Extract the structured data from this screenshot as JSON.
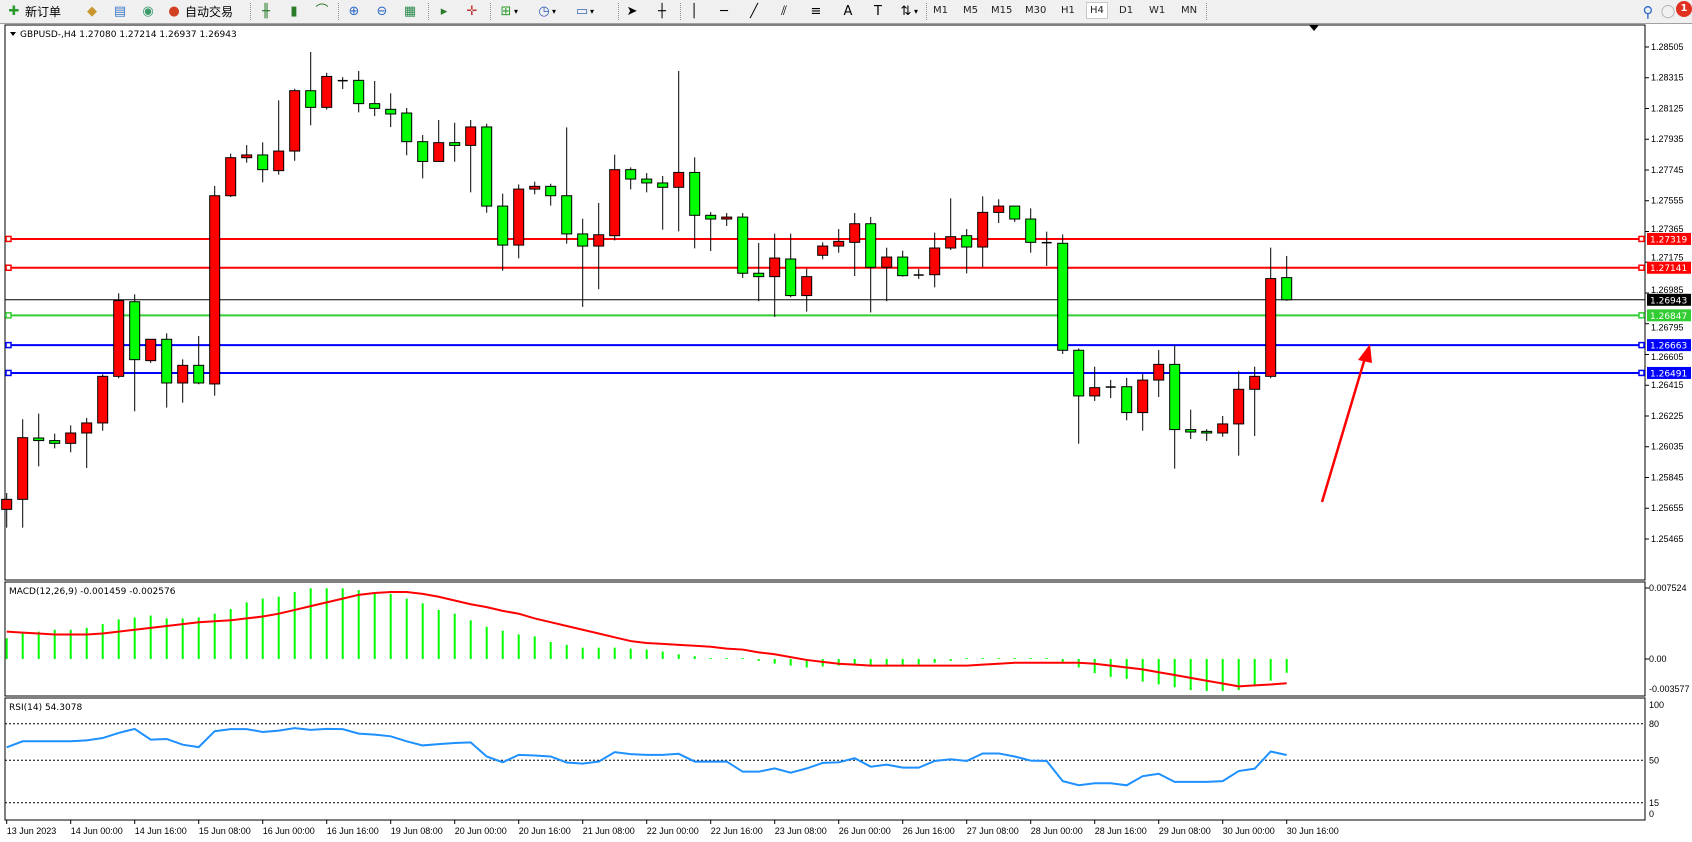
{
  "toolbar": {
    "new_order_label": "新订单",
    "auto_trade_label": "自动交易",
    "icons": [
      "new-order-icon",
      "market-watch-icon",
      "data-window-icon",
      "signals-icon",
      "auto-trading-icon",
      "bar-chart-icon",
      "candlestick-icon",
      "line-chart-icon",
      "zoom-in-icon",
      "zoom-out-icon",
      "tile-windows-icon",
      "chart-shift-icon",
      "autoscroll-icon",
      "indicators-icon",
      "periods-icon",
      "templates-icon",
      "cursor-icon",
      "crosshair-icon",
      "vertical-line-icon",
      "horizontal-line-icon",
      "trendline-icon",
      "equidistant-channel-icon",
      "fibonacci-icon",
      "text-icon",
      "text-label-icon",
      "arrows-icon",
      "search-icon",
      "notifications-icon"
    ],
    "timeframes": [
      "M1",
      "M5",
      "M15",
      "M30",
      "H1",
      "H4",
      "D1",
      "W1",
      "MN"
    ],
    "active_timeframe": "H4",
    "notification_count": "1"
  },
  "chart_header": "GBPUSD-,H4  1.27080 1.27214 1.26937 1.26943",
  "chart_data": [
    {
      "type": "candlestick",
      "symbol": "GBPUSD-",
      "timeframe": "H4",
      "ylim": [
        1.25465,
        1.28505
      ],
      "y_ticks": [
        "1.28505",
        "1.28315",
        "1.28125",
        "1.27935",
        "1.27745",
        "1.27555",
        "1.27365",
        "1.27175",
        "1.26985",
        "1.26795",
        "1.26605",
        "1.26415",
        "1.26225",
        "1.26035",
        "1.25845",
        "1.25655",
        "1.25465"
      ],
      "x_tick_labels": [
        "13 Jun 2023",
        "14 Jun 00:00",
        "14 Jun 16:00",
        "15 Jun 08:00",
        "16 Jun 00:00",
        "16 Jun 16:00",
        "19 Jun 08:00",
        "20 Jun 00:00",
        "20 Jun 16:00",
        "21 Jun 08:00",
        "22 Jun 00:00",
        "22 Jun 16:00",
        "23 Jun 08:00",
        "26 Jun 00:00",
        "26 Jun 16:00",
        "27 Jun 08:00",
        "28 Jun 00:00",
        "28 Jun 16:00",
        "29 Jun 08:00",
        "30 Jun 00:00",
        "30 Jun 16:00"
      ],
      "ohlc_fields": [
        "open",
        "high",
        "low",
        "close"
      ],
      "up_color": "#ff0000",
      "down_color": "#00ff00",
      "candles": [
        [
          1.25648,
          1.25749,
          1.25535,
          1.2571
        ],
        [
          1.2571,
          1.26205,
          1.25535,
          1.26091
        ],
        [
          1.26089,
          1.2624,
          1.25914,
          1.26073
        ],
        [
          1.26073,
          1.26116,
          1.26025,
          1.26056
        ],
        [
          1.26056,
          1.26167,
          1.26001,
          1.2612
        ],
        [
          1.2612,
          1.26213,
          1.25904,
          1.26182
        ],
        [
          1.26182,
          1.26483,
          1.26134,
          1.2647
        ],
        [
          1.2647,
          1.26983,
          1.26458,
          1.26938
        ],
        [
          1.26931,
          1.26977,
          1.26254,
          1.26573
        ],
        [
          1.26567,
          1.26699,
          1.26553,
          1.26699
        ],
        [
          1.26699,
          1.26736,
          1.26277,
          1.26429
        ],
        [
          1.26429,
          1.26575,
          1.26307,
          1.26538
        ],
        [
          1.26538,
          1.26719,
          1.26421,
          1.26429
        ],
        [
          1.26423,
          1.27646,
          1.26351,
          1.27586
        ],
        [
          1.27586,
          1.27846,
          1.27578,
          1.27821
        ],
        [
          1.27821,
          1.27899,
          1.2779,
          1.27838
        ],
        [
          1.27838,
          1.27916,
          1.27669,
          1.27747
        ],
        [
          1.27741,
          1.28175,
          1.27716,
          1.27862
        ],
        [
          1.27862,
          1.28247,
          1.27802,
          1.28235
        ],
        [
          1.28235,
          1.28474,
          1.28021,
          1.28132
        ],
        [
          1.28132,
          1.28346,
          1.28118,
          1.28323
        ],
        [
          1.28297,
          1.28319,
          1.28245,
          1.28295
        ],
        [
          1.28299,
          1.28357,
          1.28101,
          1.28155
        ],
        [
          1.28155,
          1.28295,
          1.28078,
          1.28126
        ],
        [
          1.2812,
          1.28219,
          1.2801,
          1.28091
        ],
        [
          1.28097,
          1.28128,
          1.27836,
          1.2792
        ],
        [
          1.2792,
          1.27961,
          1.27693,
          1.27798
        ],
        [
          1.27798,
          1.28054,
          1.27798,
          1.27914
        ],
        [
          1.27914,
          1.28037,
          1.27796,
          1.27897
        ],
        [
          1.27897,
          1.28054,
          1.27607,
          1.28011
        ],
        [
          1.28011,
          1.28031,
          1.27481,
          1.27522
        ],
        [
          1.27522,
          1.27599,
          1.27123,
          1.27281
        ],
        [
          1.27281,
          1.27656,
          1.27199,
          1.27627
        ],
        [
          1.27627,
          1.27673,
          1.27595,
          1.27644
        ],
        [
          1.27644,
          1.2766,
          1.27525,
          1.27586
        ],
        [
          1.27586,
          1.28008,
          1.2729,
          1.2735
        ],
        [
          1.2735,
          1.27444,
          1.26899,
          1.27275
        ],
        [
          1.27275,
          1.27541,
          1.27008,
          1.27345
        ],
        [
          1.27339,
          1.2784,
          1.2731,
          1.27747
        ],
        [
          1.27747,
          1.27761,
          1.27625,
          1.27689
        ],
        [
          1.27689,
          1.27726,
          1.27607,
          1.27665
        ],
        [
          1.27665,
          1.27708,
          1.27376,
          1.27638
        ],
        [
          1.27638,
          1.28357,
          1.27366,
          1.2773
        ],
        [
          1.2773,
          1.27823,
          1.27261,
          1.27465
        ],
        [
          1.27465,
          1.27485,
          1.27244,
          1.27442
        ],
        [
          1.27442,
          1.27479,
          1.27399,
          1.27454
        ],
        [
          1.27454,
          1.27479,
          1.27078,
          1.27107
        ],
        [
          1.27107,
          1.27294,
          1.26934,
          1.27086
        ],
        [
          1.27086,
          1.27352,
          1.26837,
          1.27201
        ],
        [
          1.27195,
          1.27352,
          1.26958,
          1.26969
        ],
        [
          1.26969,
          1.27135,
          1.2687,
          1.27086
        ],
        [
          1.27218,
          1.27298,
          1.27193,
          1.27275
        ],
        [
          1.27275,
          1.2738,
          1.27234,
          1.27304
        ],
        [
          1.27298,
          1.27479,
          1.2709,
          1.27413
        ],
        [
          1.27413,
          1.27455,
          1.26865,
          1.27144
        ],
        [
          1.27144,
          1.27265,
          1.26934,
          1.27207
        ],
        [
          1.27207,
          1.27247,
          1.27086,
          1.27092
        ],
        [
          1.27096,
          1.27133,
          1.27072,
          1.27094
        ],
        [
          1.27098,
          1.27358,
          1.2702,
          1.27263
        ],
        [
          1.27263,
          1.2757,
          1.27251,
          1.27333
        ],
        [
          1.27339,
          1.2738,
          1.27106,
          1.27269
        ],
        [
          1.27269,
          1.27582,
          1.27144,
          1.27483
        ],
        [
          1.27483,
          1.27564,
          1.27417,
          1.27522
        ],
        [
          1.27522,
          1.27522,
          1.27424,
          1.27442
        ],
        [
          1.27442,
          1.27508,
          1.27234,
          1.27298
        ],
        [
          1.27296,
          1.27364,
          1.27152,
          1.27294
        ],
        [
          1.27292,
          1.27347,
          1.26608,
          1.26631
        ],
        [
          1.26631,
          1.26643,
          1.26054,
          1.26349
        ],
        [
          1.26349,
          1.2653,
          1.26318,
          1.264
        ],
        [
          1.26404,
          1.26448,
          1.26336,
          1.26404
        ],
        [
          1.26406,
          1.2646,
          1.26198,
          1.26246
        ],
        [
          1.26246,
          1.26487,
          1.26134,
          1.26447
        ],
        [
          1.26447,
          1.26633,
          1.26342,
          1.26544
        ],
        [
          1.26544,
          1.26662,
          1.259,
          1.26141
        ],
        [
          1.26141,
          1.26264,
          1.26083,
          1.26126
        ],
        [
          1.2613,
          1.26143,
          1.26071,
          1.2612
        ],
        [
          1.2612,
          1.26225,
          1.26097,
          1.26176
        ],
        [
          1.26176,
          1.26501,
          1.2598,
          1.2639
        ],
        [
          1.2639,
          1.2653,
          1.26101,
          1.2647
        ],
        [
          1.2647,
          1.27265,
          1.26458,
          1.27074
        ],
        [
          1.2708,
          1.27214,
          1.26937,
          1.26943
        ]
      ],
      "horizontal_lines": [
        {
          "price": 1.27319,
          "label": "1.27319",
          "color": "#ff0000"
        },
        {
          "price": 1.27141,
          "label": "1.27141",
          "color": "#ff0000"
        },
        {
          "price": 1.26943,
          "label": "1.26943",
          "color": "#000000",
          "kind": "bid"
        },
        {
          "price": 1.26847,
          "label": "1.26847",
          "color": "#32cd32"
        },
        {
          "price": 1.26663,
          "label": "1.26663",
          "color": "#0000ff"
        },
        {
          "price": 1.26491,
          "label": "1.26491",
          "color": "#0000ff"
        }
      ],
      "annotation_arrow_color": "#ff0000"
    },
    {
      "type": "bar+line",
      "label": "MACD(12,26,9) -0.001459 -0.002576",
      "y_ticks": [
        "0.007524",
        "0.00",
        "-0.003577"
      ],
      "ylim": [
        -0.003577,
        0.007524
      ],
      "histogram_color": "#00ff00",
      "signal_color": "#ff0000",
      "histogram": [
        0.0022,
        0.0028,
        0.0029,
        0.0031,
        0.0031,
        0.0033,
        0.0037,
        0.0042,
        0.0044,
        0.0046,
        0.0043,
        0.0043,
        0.0044,
        0.0048,
        0.0053,
        0.006,
        0.0064,
        0.0066,
        0.0071,
        0.0075,
        0.0075,
        0.0075,
        0.0073,
        0.0071,
        0.0069,
        0.0064,
        0.0059,
        0.0052,
        0.0048,
        0.0041,
        0.0034,
        0.003,
        0.0026,
        0.0024,
        0.0018,
        0.0015,
        0.0012,
        0.0012,
        0.0012,
        0.0011,
        0.001,
        0.0008,
        0.0005,
        0.0003,
        0.0001,
        0.0001,
        5e-05,
        -0.0002,
        -0.0005,
        -0.0007,
        -0.0009,
        -0.0008,
        -0.0007,
        -0.0006,
        -0.0007,
        -0.0008,
        -0.0007,
        -0.0006,
        -0.0004,
        -0.0002,
        0.0001,
        0.0001,
        0.0001,
        0.0001,
        0.0001,
        0.0,
        -0.0004,
        -0.0009,
        -0.0015,
        -0.0019,
        -0.0021,
        -0.0024,
        -0.0027,
        -0.003,
        -0.0033,
        -0.0034,
        -0.0034,
        -0.0033,
        -0.0028,
        -0.0023,
        -0.001459
      ],
      "signal": [
        0.0029,
        0.0028,
        0.0027,
        0.0026,
        0.0026,
        0.0026,
        0.0027,
        0.0029,
        0.0031,
        0.0033,
        0.0035,
        0.0037,
        0.0039,
        0.004,
        0.0041,
        0.0043,
        0.0045,
        0.0048,
        0.0052,
        0.0056,
        0.006,
        0.0064,
        0.0068,
        0.007,
        0.0071,
        0.0071,
        0.0069,
        0.0066,
        0.0062,
        0.0058,
        0.0055,
        0.0051,
        0.0048,
        0.0043,
        0.0039,
        0.0035,
        0.0031,
        0.0027,
        0.0023,
        0.0019,
        0.0017,
        0.0016,
        0.0015,
        0.0014,
        0.0013,
        0.0011,
        0.001,
        0.0007,
        0.0005,
        0.0002,
        -0.0001,
        -0.0003,
        -0.0005,
        -0.0006,
        -0.0007,
        -0.0007,
        -0.0007,
        -0.0007,
        -0.0007,
        -0.0007,
        -0.0007,
        -0.0006,
        -0.0005,
        -0.0004,
        -0.0004,
        -0.0004,
        -0.0004,
        -0.0004,
        -0.0005,
        -0.0007,
        -0.0009,
        -0.0011,
        -0.0014,
        -0.0017,
        -0.002,
        -0.0023,
        -0.0026,
        -0.0029,
        -0.0028,
        -0.0027,
        -0.002576
      ]
    },
    {
      "type": "line",
      "label": "RSI(14) 54.3078",
      "y_ticks": [
        "100",
        "80",
        "50",
        "15",
        "0"
      ],
      "levels": [
        80,
        50,
        15
      ],
      "ylim": [
        0,
        100
      ],
      "line_color": "#1e90ff",
      "values": [
        60.6,
        65.6,
        65.6,
        65.6,
        65.6,
        66.4,
        68.3,
        72.5,
        75.8,
        67.0,
        67.5,
        62.8,
        60.8,
        73.9,
        75.6,
        75.6,
        73.3,
        74.4,
        76.4,
        75.0,
        75.8,
        75.6,
        71.9,
        71.1,
        69.7,
        65.6,
        62.2,
        63.3,
        64.2,
        64.7,
        53.1,
        48.3,
        54.4,
        53.9,
        53.1,
        48.1,
        47.2,
        48.9,
        56.7,
        55.0,
        54.4,
        54.4,
        55.3,
        48.9,
        48.9,
        48.9,
        40.6,
        40.6,
        43.3,
        39.7,
        43.3,
        47.8,
        48.3,
        51.7,
        44.7,
        46.4,
        43.9,
        43.9,
        49.4,
        50.8,
        49.4,
        55.6,
        55.6,
        53.1,
        49.7,
        49.4,
        32.8,
        29.4,
        31.1,
        31.1,
        29.4,
        36.9,
        38.9,
        32.2,
        32.2,
        32.2,
        32.8,
        41.1,
        43.1,
        57.2,
        54.3078
      ]
    }
  ]
}
